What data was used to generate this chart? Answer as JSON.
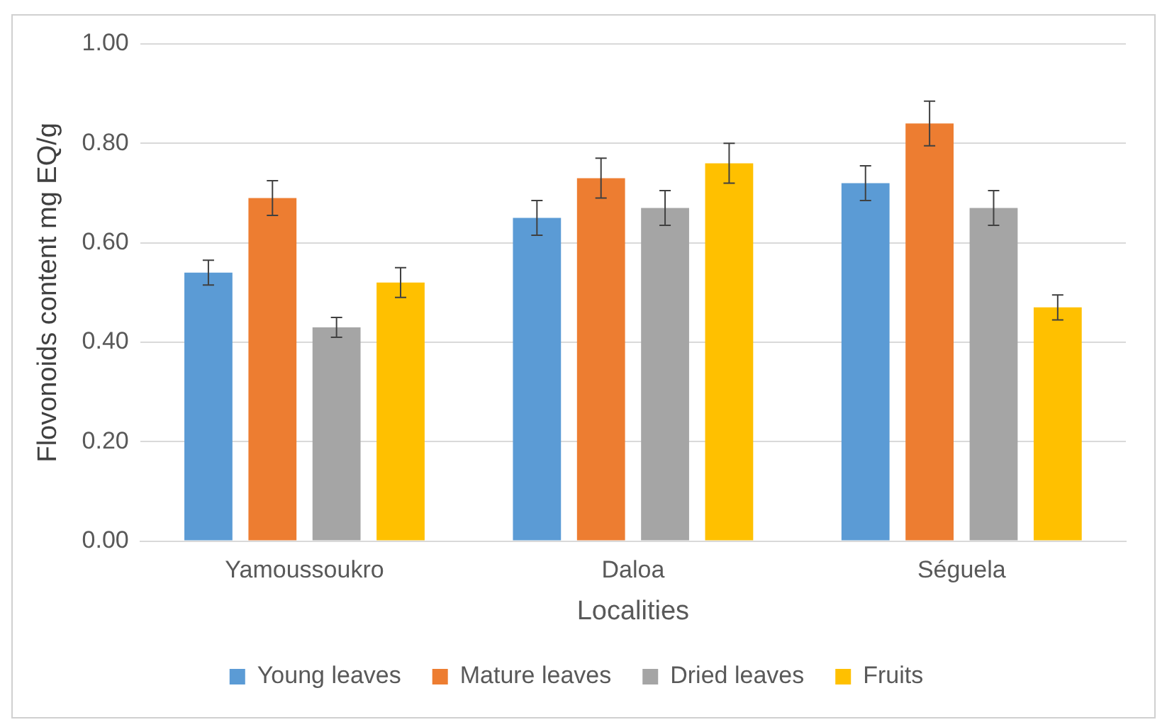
{
  "chart_data": {
    "type": "bar",
    "xlabel": "Localities",
    "ylabel": "Flovonoids content mg EQ/g",
    "categories": [
      "Yamoussoukro",
      "Daloa",
      "Séguela"
    ],
    "series": [
      {
        "name": "Young leaves",
        "color": "#5b9bd5",
        "values": [
          0.54,
          0.65,
          0.72
        ],
        "errors": [
          0.025,
          0.035,
          0.035
        ]
      },
      {
        "name": "Mature leaves",
        "color": "#ed7d31",
        "values": [
          0.69,
          0.73,
          0.84
        ],
        "errors": [
          0.035,
          0.04,
          0.045
        ]
      },
      {
        "name": "Dried leaves",
        "color": "#a5a5a5",
        "values": [
          0.43,
          0.67,
          0.67
        ],
        "errors": [
          0.02,
          0.035,
          0.035
        ]
      },
      {
        "name": "Fruits",
        "color": "#ffc000",
        "values": [
          0.52,
          0.76,
          0.47
        ],
        "errors": [
          0.03,
          0.04,
          0.025
        ]
      }
    ],
    "ylim": [
      0,
      1
    ],
    "yticks": [
      {
        "value": 0,
        "label": "0.00"
      },
      {
        "value": 0.2,
        "label": "0.20"
      },
      {
        "value": 0.4,
        "label": "0.40"
      },
      {
        "value": 0.6,
        "label": "0.60"
      },
      {
        "value": 0.8,
        "label": "0.80"
      },
      {
        "value": 1,
        "label": "1.00"
      }
    ],
    "grid": "y",
    "legend": "bottom"
  }
}
